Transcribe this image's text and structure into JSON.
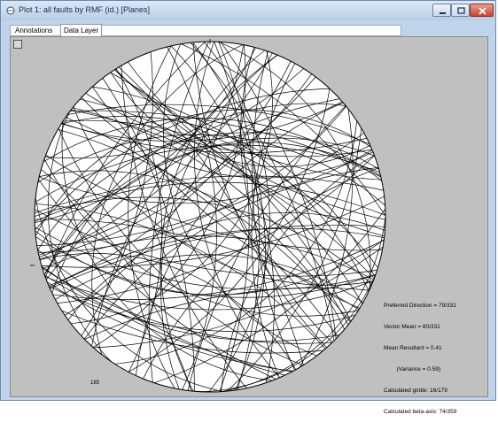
{
  "window": {
    "title": "Plot 1: all faults by RMF (id.) [Planes]"
  },
  "tabs": [
    {
      "label": "Annotations"
    },
    {
      "label": "Data Layer"
    }
  ],
  "plot": {
    "north_mark": "|",
    "west_mark": "-",
    "count_label": "185",
    "statistics": [
      "Preferred Direction = 79/331",
      "Vector Mean = 80/331",
      "Mean Resultant = 0.41",
      "        (Variance = 0.59)",
      "Calculated girdle: 16/179",
      "Calculated beta-axis: 74/359"
    ]
  },
  "colors": {
    "background": "#c0c0c0",
    "plot_fill": "#ffffff",
    "line": "#000000"
  }
}
